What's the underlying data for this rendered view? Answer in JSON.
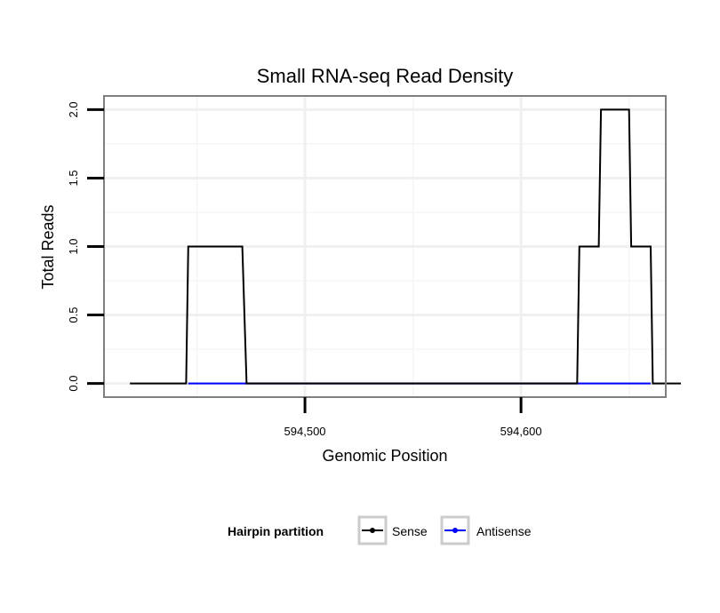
{
  "chart_data": {
    "type": "line",
    "title": "Small RNA-seq Read Density",
    "xlabel": "Genomic Position",
    "ylabel": "Total Reads",
    "xlim": [
      594407,
      594667
    ],
    "ylim": [
      -0.1,
      2.1
    ],
    "x_ticks": [
      594500,
      594600
    ],
    "x_tick_labels": [
      "594,500",
      "594,600"
    ],
    "y_ticks": [
      0.0,
      0.5,
      1.0,
      1.5,
      2.0
    ],
    "y_tick_labels": [
      "0.0",
      "0.5",
      "1.0",
      "1.5",
      "2.0"
    ],
    "grid": true,
    "legend": {
      "title": "Hairpin partition",
      "position": "bottom",
      "entries": [
        "Sense",
        "Antisense"
      ]
    },
    "series": [
      {
        "name": "Sense",
        "color": "#000000",
        "x": [
          594419,
          594445,
          594446,
          594471,
          594473,
          594626,
          594627,
          594636,
          594637,
          594650,
          594651,
          594660,
          594661,
          594665,
          594674
        ],
        "values": [
          0,
          0,
          1,
          1,
          0,
          0,
          1,
          1,
          2,
          2,
          1,
          1,
          0,
          0,
          0
        ]
      },
      {
        "name": "Antisense",
        "color": "#0000ff",
        "x": [
          594446,
          594471,
          594627,
          594660
        ],
        "values": [
          0,
          0,
          0,
          0
        ]
      }
    ]
  }
}
